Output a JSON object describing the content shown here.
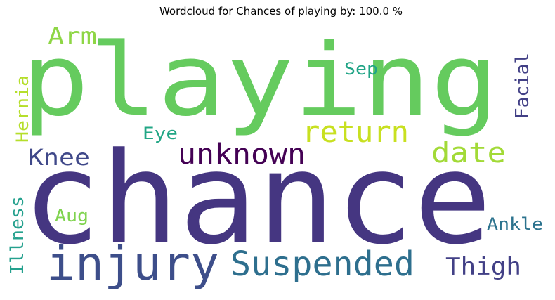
{
  "title": "Wordcloud for Chances of playing by: 100.0 %",
  "words": {
    "playing": {
      "text": "playing",
      "color": "#65cb5e"
    },
    "chance": {
      "text": "chance",
      "color": "#453681"
    },
    "injury": {
      "text": "injury",
      "color": "#3d4e8a"
    },
    "suspended": {
      "text": "Suspended",
      "color": "#2e6f8e"
    },
    "unknown": {
      "text": "unknown",
      "color": "#440154"
    },
    "return": {
      "text": "return",
      "color": "#c8e020"
    },
    "date": {
      "text": "date",
      "color": "#a2da37"
    },
    "knee": {
      "text": "Knee",
      "color": "#3f4889"
    },
    "arm": {
      "text": "Arm",
      "color": "#8ed645"
    },
    "thigh": {
      "text": "Thigh",
      "color": "#424086"
    },
    "facial": {
      "text": "Facial",
      "color": "#424086"
    },
    "hernia": {
      "text": "Hernia",
      "color": "#b5de2b"
    },
    "illness": {
      "text": "Illness",
      "color": "#25a18e"
    },
    "ankle": {
      "text": "Ankle",
      "color": "#2c738e"
    },
    "eye": {
      "text": "Eye",
      "color": "#21a685"
    },
    "sep": {
      "text": "Sep",
      "color": "#20a486"
    },
    "aug": {
      "text": "Aug",
      "color": "#7fd34e"
    }
  }
}
